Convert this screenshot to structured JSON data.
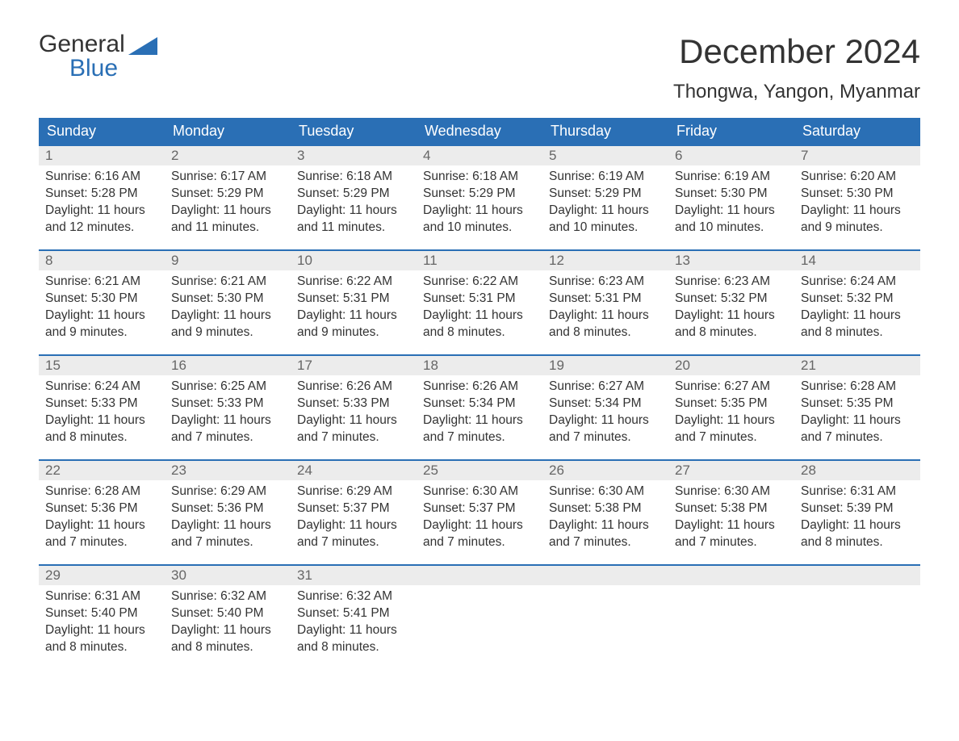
{
  "brand": {
    "word1": "General",
    "word2": "Blue"
  },
  "title": "December 2024",
  "location": "Thongwa, Yangon, Myanmar",
  "colors": {
    "header_blue": "#2a6fb5",
    "day_bg": "#ececec",
    "text": "#333333",
    "muted": "#666666",
    "background": "#ffffff"
  },
  "typography": {
    "title_fontsize": 42,
    "location_fontsize": 24,
    "header_fontsize": 18,
    "daynum_fontsize": 17,
    "body_fontsize": 15.5
  },
  "weekdays": [
    "Sunday",
    "Monday",
    "Tuesday",
    "Wednesday",
    "Thursday",
    "Friday",
    "Saturday"
  ],
  "labels": {
    "sunrise": "Sunrise:",
    "sunset": "Sunset:",
    "daylight": "Daylight:"
  },
  "weeks": [
    [
      {
        "day": "1",
        "sunrise": "6:16 AM",
        "sunset": "5:28 PM",
        "daylight": "11 hours and 12 minutes."
      },
      {
        "day": "2",
        "sunrise": "6:17 AM",
        "sunset": "5:29 PM",
        "daylight": "11 hours and 11 minutes."
      },
      {
        "day": "3",
        "sunrise": "6:18 AM",
        "sunset": "5:29 PM",
        "daylight": "11 hours and 11 minutes."
      },
      {
        "day": "4",
        "sunrise": "6:18 AM",
        "sunset": "5:29 PM",
        "daylight": "11 hours and 10 minutes."
      },
      {
        "day": "5",
        "sunrise": "6:19 AM",
        "sunset": "5:29 PM",
        "daylight": "11 hours and 10 minutes."
      },
      {
        "day": "6",
        "sunrise": "6:19 AM",
        "sunset": "5:30 PM",
        "daylight": "11 hours and 10 minutes."
      },
      {
        "day": "7",
        "sunrise": "6:20 AM",
        "sunset": "5:30 PM",
        "daylight": "11 hours and 9 minutes."
      }
    ],
    [
      {
        "day": "8",
        "sunrise": "6:21 AM",
        "sunset": "5:30 PM",
        "daylight": "11 hours and 9 minutes."
      },
      {
        "day": "9",
        "sunrise": "6:21 AM",
        "sunset": "5:30 PM",
        "daylight": "11 hours and 9 minutes."
      },
      {
        "day": "10",
        "sunrise": "6:22 AM",
        "sunset": "5:31 PM",
        "daylight": "11 hours and 9 minutes."
      },
      {
        "day": "11",
        "sunrise": "6:22 AM",
        "sunset": "5:31 PM",
        "daylight": "11 hours and 8 minutes."
      },
      {
        "day": "12",
        "sunrise": "6:23 AM",
        "sunset": "5:31 PM",
        "daylight": "11 hours and 8 minutes."
      },
      {
        "day": "13",
        "sunrise": "6:23 AM",
        "sunset": "5:32 PM",
        "daylight": "11 hours and 8 minutes."
      },
      {
        "day": "14",
        "sunrise": "6:24 AM",
        "sunset": "5:32 PM",
        "daylight": "11 hours and 8 minutes."
      }
    ],
    [
      {
        "day": "15",
        "sunrise": "6:24 AM",
        "sunset": "5:33 PM",
        "daylight": "11 hours and 8 minutes."
      },
      {
        "day": "16",
        "sunrise": "6:25 AM",
        "sunset": "5:33 PM",
        "daylight": "11 hours and 7 minutes."
      },
      {
        "day": "17",
        "sunrise": "6:26 AM",
        "sunset": "5:33 PM",
        "daylight": "11 hours and 7 minutes."
      },
      {
        "day": "18",
        "sunrise": "6:26 AM",
        "sunset": "5:34 PM",
        "daylight": "11 hours and 7 minutes."
      },
      {
        "day": "19",
        "sunrise": "6:27 AM",
        "sunset": "5:34 PM",
        "daylight": "11 hours and 7 minutes."
      },
      {
        "day": "20",
        "sunrise": "6:27 AM",
        "sunset": "5:35 PM",
        "daylight": "11 hours and 7 minutes."
      },
      {
        "day": "21",
        "sunrise": "6:28 AM",
        "sunset": "5:35 PM",
        "daylight": "11 hours and 7 minutes."
      }
    ],
    [
      {
        "day": "22",
        "sunrise": "6:28 AM",
        "sunset": "5:36 PM",
        "daylight": "11 hours and 7 minutes."
      },
      {
        "day": "23",
        "sunrise": "6:29 AM",
        "sunset": "5:36 PM",
        "daylight": "11 hours and 7 minutes."
      },
      {
        "day": "24",
        "sunrise": "6:29 AM",
        "sunset": "5:37 PM",
        "daylight": "11 hours and 7 minutes."
      },
      {
        "day": "25",
        "sunrise": "6:30 AM",
        "sunset": "5:37 PM",
        "daylight": "11 hours and 7 minutes."
      },
      {
        "day": "26",
        "sunrise": "6:30 AM",
        "sunset": "5:38 PM",
        "daylight": "11 hours and 7 minutes."
      },
      {
        "day": "27",
        "sunrise": "6:30 AM",
        "sunset": "5:38 PM",
        "daylight": "11 hours and 7 minutes."
      },
      {
        "day": "28",
        "sunrise": "6:31 AM",
        "sunset": "5:39 PM",
        "daylight": "11 hours and 8 minutes."
      }
    ],
    [
      {
        "day": "29",
        "sunrise": "6:31 AM",
        "sunset": "5:40 PM",
        "daylight": "11 hours and 8 minutes."
      },
      {
        "day": "30",
        "sunrise": "6:32 AM",
        "sunset": "5:40 PM",
        "daylight": "11 hours and 8 minutes."
      },
      {
        "day": "31",
        "sunrise": "6:32 AM",
        "sunset": "5:41 PM",
        "daylight": "11 hours and 8 minutes."
      },
      null,
      null,
      null,
      null
    ]
  ]
}
